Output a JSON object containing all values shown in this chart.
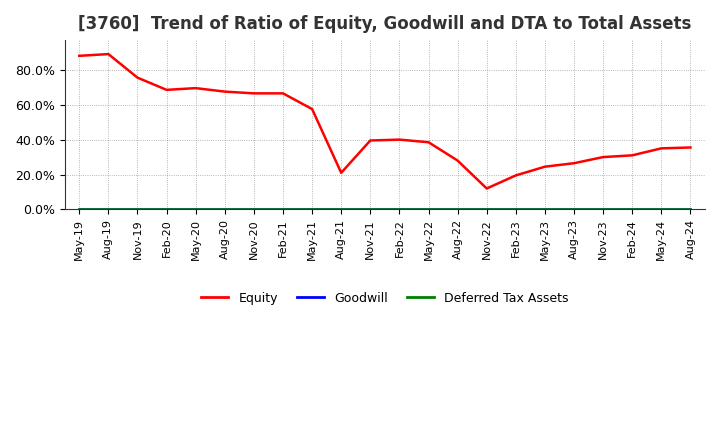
{
  "title": "[3760]  Trend of Ratio of Equity, Goodwill and DTA to Total Assets",
  "equity_values": [
    0.88,
    0.89,
    0.755,
    0.685,
    0.695,
    0.675,
    0.665,
    0.665,
    0.575,
    0.21,
    0.395,
    0.4,
    0.385,
    0.28,
    0.12,
    0.195,
    0.245,
    0.265,
    0.3,
    0.31,
    0.35,
    0.355
  ],
  "goodwill_values": [
    0,
    0,
    0,
    0,
    0,
    0,
    0,
    0,
    0,
    0,
    0,
    0,
    0,
    0,
    0,
    0,
    0,
    0,
    0,
    0,
    0,
    0
  ],
  "dta_values": [
    0,
    0,
    0,
    0,
    0,
    0,
    0,
    0,
    0,
    0,
    0,
    0,
    0,
    0,
    0,
    0,
    0,
    0,
    0,
    0,
    0,
    0
  ],
  "equity_color": "#ff0000",
  "goodwill_color": "#0000ff",
  "dta_color": "#008000",
  "xlabels": [
    "May-19",
    "Aug-19",
    "Nov-19",
    "Feb-20",
    "May-20",
    "Aug-20",
    "Nov-20",
    "Feb-21",
    "May-21",
    "Aug-21",
    "Nov-21",
    "Feb-22",
    "May-22",
    "Aug-22",
    "Nov-22",
    "Feb-23",
    "May-23",
    "Aug-23",
    "Nov-23",
    "Feb-24",
    "May-24",
    "Aug-24"
  ],
  "ylim": [
    0.0,
    0.97
  ],
  "yticks": [
    0.0,
    0.2,
    0.4,
    0.6,
    0.8
  ],
  "ytick_labels": [
    "0.0%",
    "20.0%",
    "40.0%",
    "60.0%",
    "80.0%"
  ],
  "background_color": "#ffffff",
  "plot_bg_color": "#ffffff",
  "grid_color": "#888888",
  "legend_entries": [
    "Equity",
    "Goodwill",
    "Deferred Tax Assets"
  ],
  "title_fontsize": 12,
  "tick_fontsize": 8,
  "ytick_fontsize": 9
}
